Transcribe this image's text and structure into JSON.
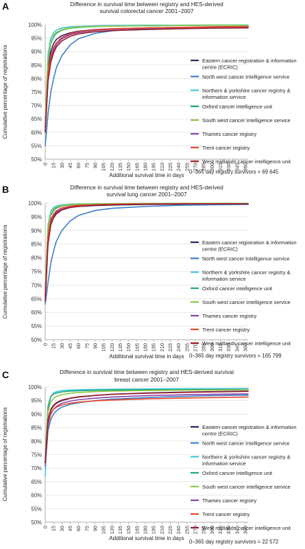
{
  "figure": {
    "panels": [
      "A",
      "B",
      "C"
    ],
    "legend_entries": [
      "Eastern cancer registration & information centre (ECRIC)",
      "North west cancer intelligence service",
      "Northern & yorkshire cancer registry & information service",
      "Oxford cancer intelligence unit",
      "South west cancer intelligence service",
      "Thames cancer registry",
      "Trent cancer registry",
      "West midlands cancer intelligence unit"
    ],
    "series_colors": [
      "#1f2a6b",
      "#3b7fc4",
      "#3ec6e0",
      "#1fa67a",
      "#8cc63e",
      "#8a3fa8",
      "#e8472c",
      "#9b1c2c"
    ]
  },
  "chart_data": [
    {
      "type": "line",
      "panel": "A",
      "title": [
        "Difference in survival time between registry and HES-derived",
        "survival colorectal cancer 2001–2007"
      ],
      "xlabel": "Additional survival time in days",
      "ylabel": "Cumulative percentage of registrations",
      "x_ticks": [
        0,
        15,
        30,
        45,
        60,
        75,
        90,
        105,
        120,
        135,
        150,
        165,
        180,
        195,
        210,
        225,
        240,
        255,
        270,
        285,
        300,
        315,
        330,
        345,
        360
      ],
      "y_ticks": [
        "50%",
        "55%",
        "60%",
        "65%",
        "70%",
        "75%",
        "80%",
        "85%",
        "90%",
        "95%",
        "100%"
      ],
      "ylim": [
        50,
        100
      ],
      "xlim": [
        0,
        365
      ],
      "legend": [
        [
          "Eastern cancer registration & information",
          "centre (ECRIC)"
        ],
        [
          "North west cancer intelligence service"
        ],
        [
          "Northern & yorkshire cancer registry &",
          "information service"
        ],
        [
          "Oxford cancer intelligence unit"
        ],
        [
          "South west cancer intelligence service"
        ],
        [
          "Thames cancer registry"
        ],
        [
          "Trent cancer registry"
        ],
        [
          "West midlands cancer intelligence unit"
        ]
      ],
      "annotation": "0–365 day registry survivors = 69 645",
      "x": [
        0,
        5,
        10,
        15,
        20,
        30,
        45,
        60,
        90,
        120,
        180,
        240,
        300,
        365
      ],
      "series": [
        {
          "name": "Eastern cancer registration & information centre (ECRIC)",
          "values": [
            62,
            84,
            90,
            93,
            94.5,
            96,
            97,
            97.6,
            98.2,
            98.5,
            98.8,
            99,
            99.1,
            99.2
          ]
        },
        {
          "name": "North west cancer intelligence service",
          "values": [
            55,
            67,
            75,
            80,
            84,
            88.5,
            92.5,
            94.8,
            96.8,
            97.7,
            98.5,
            98.9,
            99.2,
            99.4
          ]
        },
        {
          "name": "Northern & yorkshire cancer registry & information service",
          "values": [
            65,
            89,
            95,
            97,
            98,
            98.8,
            99.2,
            99.4,
            99.6,
            99.7,
            99.8,
            99.8,
            99.9,
            99.9
          ]
        },
        {
          "name": "Oxford cancer intelligence unit",
          "values": [
            63,
            86,
            93,
            95.5,
            96.8,
            98,
            98.7,
            99,
            99.3,
            99.5,
            99.6,
            99.7,
            99.8,
            99.8
          ]
        },
        {
          "name": "South west cancer intelligence service",
          "values": [
            64,
            87,
            93.5,
            96,
            97.2,
            98.2,
            98.8,
            99.1,
            99.4,
            99.5,
            99.6,
            99.7,
            99.8,
            99.8
          ]
        },
        {
          "name": "Thames cancer registry",
          "values": [
            60,
            80,
            87,
            90.5,
            92.5,
            94.8,
            96.3,
            97.1,
            97.9,
            98.3,
            98.7,
            98.9,
            99.1,
            99.2
          ]
        },
        {
          "name": "Trent cancer registry",
          "values": [
            61,
            82,
            88.5,
            91.5,
            93.3,
            95.3,
            96.7,
            97.4,
            98.1,
            98.5,
            98.8,
            99,
            99.2,
            99.3
          ]
        },
        {
          "name": "West midlands cancer intelligence unit",
          "values": [
            60,
            79,
            86,
            89.5,
            91.7,
            94,
            95.7,
            96.6,
            97.4,
            97.8,
            98.2,
            98.5,
            98.7,
            98.8
          ]
        }
      ]
    },
    {
      "type": "line",
      "panel": "B",
      "title": [
        "Difference in survival time between registry and HES-derived",
        "survival lung cancer 2001–2007"
      ],
      "xlabel": "Additional survival time in days",
      "ylabel": "Cumulative percentage of registrations",
      "x_ticks": [
        0,
        15,
        30,
        45,
        60,
        75,
        90,
        105,
        120,
        135,
        150,
        165,
        180,
        195,
        210,
        225,
        240,
        255,
        270,
        285,
        300,
        315,
        330,
        345,
        360
      ],
      "y_ticks": [
        "50%",
        "55%",
        "60%",
        "65%",
        "70%",
        "75%",
        "80%",
        "85%",
        "90%",
        "95%",
        "100%"
      ],
      "ylim": [
        50,
        100
      ],
      "xlim": [
        0,
        365
      ],
      "legend": [
        [
          "Eastern cancer registration & information",
          "centre (ECRIC)"
        ],
        [
          "North west cancer intelligence service"
        ],
        [
          "Northern & yorkshire cancer registry &",
          "information service"
        ],
        [
          "Oxford cancer intelligence unit"
        ],
        [
          "South west cancer intelligence service"
        ],
        [
          "Thames cancer registry"
        ],
        [
          "Trent cancer registry"
        ],
        [
          "West midlands cancer intelligence unit"
        ]
      ],
      "annotation": "0–365 day registry survivors = 165 799",
      "x": [
        0,
        5,
        10,
        15,
        20,
        30,
        45,
        60,
        90,
        120,
        180,
        240,
        300,
        365
      ],
      "series": [
        {
          "name": "Eastern cancer registration & information centre (ECRIC)",
          "values": [
            66,
            88,
            93.5,
            95.5,
            96.7,
            97.8,
            98.5,
            98.8,
            99.1,
            99.3,
            99.5,
            99.6,
            99.7,
            99.7
          ]
        },
        {
          "name": "North west cancer intelligence service",
          "values": [
            63,
            71,
            78,
            82.5,
            86,
            90,
            93.5,
            95.5,
            97.3,
            98.1,
            98.8,
            99.2,
            99.4,
            99.5
          ]
        },
        {
          "name": "Northern & yorkshire cancer registry & information service",
          "values": [
            70,
            92,
            97,
            98.4,
            99,
            99.4,
            99.6,
            99.7,
            99.8,
            99.8,
            99.9,
            99.9,
            99.9,
            99.9
          ]
        },
        {
          "name": "Oxford cancer intelligence unit",
          "values": [
            68,
            90,
            95.5,
            97.3,
            98.2,
            99,
            99.4,
            99.5,
            99.7,
            99.8,
            99.8,
            99.9,
            99.9,
            99.9
          ]
        },
        {
          "name": "South west cancer intelligence service",
          "values": [
            69,
            91,
            96,
            97.8,
            98.6,
            99.2,
            99.5,
            99.6,
            99.7,
            99.8,
            99.9,
            99.9,
            99.9,
            99.9
          ]
        },
        {
          "name": "Thames cancer registry",
          "values": [
            65,
            87,
            93,
            95.2,
            96.5,
            97.8,
            98.6,
            99,
            99.3,
            99.5,
            99.6,
            99.7,
            99.8,
            99.8
          ]
        },
        {
          "name": "Trent cancer registry",
          "values": [
            66,
            88,
            94,
            96,
            97.2,
            98.3,
            98.9,
            99.2,
            99.4,
            99.6,
            99.7,
            99.8,
            99.8,
            99.8
          ]
        },
        {
          "name": "West midlands cancer intelligence unit",
          "values": [
            64,
            85,
            92,
            94.6,
            96,
            97.5,
            98.4,
            98.8,
            99.2,
            99.4,
            99.6,
            99.7,
            99.7,
            99.8
          ]
        }
      ]
    },
    {
      "type": "line",
      "panel": "C",
      "title": [
        "Difference in survival time between registry and HES-derived survival",
        "breast cancer 2001–2007"
      ],
      "xlabel": "Additional survival time in days",
      "ylabel": "Cumulative percentage of registrations",
      "x_ticks": [
        0,
        15,
        30,
        45,
        60,
        75,
        90,
        105,
        120,
        135,
        150,
        165,
        180,
        195,
        210,
        225,
        240,
        255,
        270,
        285,
        300,
        315,
        330,
        345,
        360
      ],
      "y_ticks": [
        "50%",
        "55%",
        "60%",
        "65%",
        "70%",
        "75%",
        "80%",
        "85%",
        "90%",
        "95%",
        "100%"
      ],
      "ylim": [
        50,
        100
      ],
      "xlim": [
        0,
        365
      ],
      "legend": [
        [
          "Eastern cancer registration & information",
          "centre (ECRIC)"
        ],
        [
          "North west cancer intelligence service"
        ],
        [
          "Northern & yorkshire cancer registry &",
          "information service"
        ],
        [
          "Oxford cancer intelligence unit"
        ],
        [
          "South west cancer intelligence service"
        ],
        [
          "Thames cancer registry"
        ],
        [
          "Trent cancer registry"
        ],
        [
          "West midlands cancer intelligence unit"
        ]
      ],
      "annotation": "0–365 day registry survivors = 22 572",
      "x": [
        0,
        5,
        10,
        15,
        20,
        30,
        45,
        60,
        90,
        120,
        180,
        240,
        300,
        365
      ],
      "series": [
        {
          "name": "Eastern cancer registration & information centre (ECRIC)",
          "values": [
            72,
            88,
            91.5,
            93,
            94,
            95,
            95.8,
            96.3,
            96.9,
            97.3,
            97.8,
            98.1,
            98.3,
            98.5
          ]
        },
        {
          "name": "North west cancer intelligence service",
          "values": [
            70,
            84,
            88,
            90,
            91.2,
            92.6,
            93.6,
            94.2,
            95,
            95.5,
            96.1,
            96.5,
            96.8,
            97
          ]
        },
        {
          "name": "Northern & yorkshire cancer registry & information service",
          "values": [
            67,
            92,
            96.5,
            97.8,
            98.3,
            98.7,
            98.9,
            99,
            99.1,
            99.2,
            99.3,
            99.4,
            99.4,
            99.5
          ]
        },
        {
          "name": "Oxford cancer intelligence unit",
          "values": [
            75,
            93,
            96.5,
            97.4,
            97.8,
            98.2,
            98.5,
            98.6,
            98.8,
            98.9,
            99,
            99,
            99.1,
            99.1
          ]
        },
        {
          "name": "South west cancer intelligence service",
          "values": [
            74,
            91,
            94.5,
            95.8,
            96.5,
            97.2,
            97.7,
            98,
            98.3,
            98.5,
            98.7,
            98.8,
            98.9,
            99
          ]
        },
        {
          "name": "Thames cancer registry",
          "values": [
            71,
            86,
            90,
            91.8,
            92.8,
            94,
            94.8,
            95.3,
            95.9,
            96.3,
            96.8,
            97.1,
            97.3,
            97.5
          ]
        },
        {
          "name": "Trent cancer registry",
          "values": [
            73,
            87,
            90.5,
            91.8,
            92.5,
            93.4,
            94,
            94.4,
            94.9,
            95.2,
            95.6,
            95.9,
            96.1,
            96.3
          ]
        },
        {
          "name": "West midlands cancer intelligence unit",
          "values": [
            72,
            88,
            91.8,
            93.3,
            94.2,
            95.2,
            95.9,
            96.4,
            96.9,
            97.3,
            97.7,
            98,
            98.2,
            98.4
          ]
        }
      ]
    }
  ]
}
